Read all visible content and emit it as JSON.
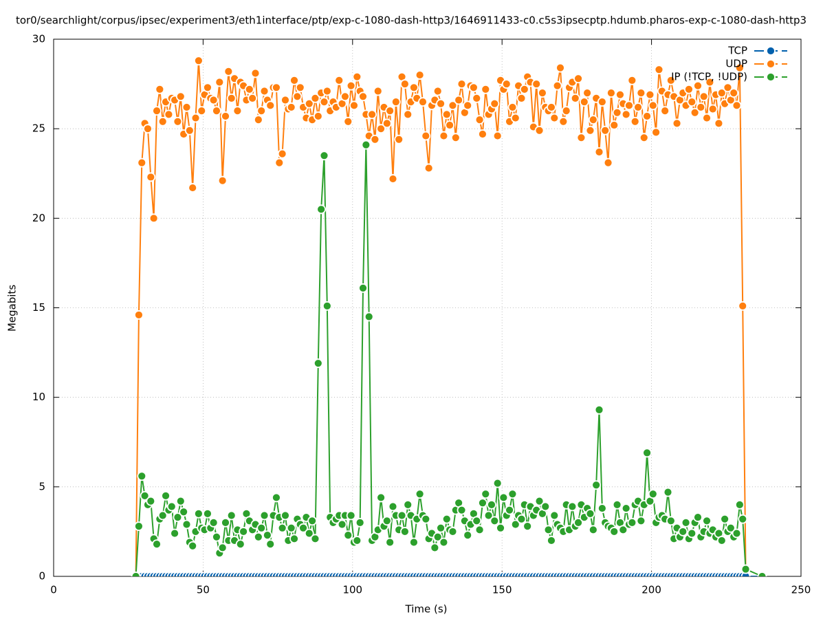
{
  "chart_data": {
    "type": "line",
    "title": "tor0/searchlight/corpus/ipsec/experiment3/eth1interface/ptp/exp-c-1080-dash-http3/1646911433-c0.c5s3ipsecptp.hdumb.pharos-exp-c-1080-dash-http3",
    "x_label": "Time (s)",
    "y_label": "Megabits",
    "xlim": [
      0,
      250
    ],
    "xticks": [
      0,
      50,
      100,
      150,
      200,
      250
    ],
    "ylim": [
      0,
      30
    ],
    "yticks": [
      0,
      5,
      10,
      15,
      20,
      25,
      30
    ],
    "grid": true,
    "legend": "top-right",
    "x": [
      27.5,
      28.5,
      29.5,
      30.5,
      31.5,
      32.5,
      33.5,
      34.5,
      35.5,
      36.5,
      37.5,
      38.5,
      39.5,
      40.5,
      41.5,
      42.5,
      43.5,
      44.5,
      45.5,
      46.5,
      47.5,
      48.5,
      49.5,
      50.5,
      51.5,
      52.5,
      53.5,
      54.5,
      55.5,
      56.5,
      57.5,
      58.5,
      59.5,
      60.5,
      61.5,
      62.5,
      63.5,
      64.5,
      65.5,
      66.5,
      67.5,
      68.5,
      69.5,
      70.5,
      71.5,
      72.5,
      73.5,
      74.5,
      75.5,
      76.5,
      77.5,
      78.5,
      79.5,
      80.5,
      81.5,
      82.5,
      83.5,
      84.5,
      85.5,
      86.5,
      87.5,
      88.5,
      89.5,
      90.5,
      91.5,
      92.5,
      93.5,
      94.5,
      95.5,
      96.5,
      97.5,
      98.5,
      99.5,
      100.5,
      101.5,
      102.5,
      103.5,
      104.5,
      105.5,
      106.5,
      107.5,
      108.5,
      109.5,
      110.5,
      111.5,
      112.5,
      113.5,
      114.5,
      115.5,
      116.5,
      117.5,
      118.5,
      119.5,
      120.5,
      121.5,
      122.5,
      123.5,
      124.5,
      125.5,
      126.5,
      127.5,
      128.5,
      129.5,
      130.5,
      131.5,
      132.5,
      133.5,
      134.5,
      135.5,
      136.5,
      137.5,
      138.5,
      139.5,
      140.5,
      141.5,
      142.5,
      143.5,
      144.5,
      145.5,
      146.5,
      147.5,
      148.5,
      149.5,
      150.5,
      151.5,
      152.5,
      153.5,
      154.5,
      155.5,
      156.5,
      157.5,
      158.5,
      159.5,
      160.5,
      161.5,
      162.5,
      163.5,
      164.5,
      165.5,
      166.5,
      167.5,
      168.5,
      169.5,
      170.5,
      171.5,
      172.5,
      173.5,
      174.5,
      175.5,
      176.5,
      177.5,
      178.5,
      179.5,
      180.5,
      181.5,
      182.5,
      183.5,
      184.5,
      185.5,
      186.5,
      187.5,
      188.5,
      189.5,
      190.5,
      191.5,
      192.5,
      193.5,
      194.5,
      195.5,
      196.5,
      197.5,
      198.5,
      199.5,
      200.5,
      201.5,
      202.5,
      203.5,
      204.5,
      205.5,
      206.5,
      207.5,
      208.5,
      209.5,
      210.5,
      211.5,
      212.5,
      213.5,
      214.5,
      215.5,
      216.5,
      217.5,
      218.5,
      219.5,
      220.5,
      221.5,
      222.5,
      223.5,
      224.5,
      225.5,
      226.5,
      227.5,
      228.5,
      229.5,
      230.5,
      231.5,
      237
    ],
    "series": [
      {
        "name": "TCP",
        "color": "#0060ad",
        "values": [
          0,
          0,
          0,
          0,
          0,
          0,
          0,
          0,
          0,
          0,
          0,
          0,
          0,
          0,
          0,
          0,
          0,
          0,
          0,
          0,
          0,
          0,
          0,
          0,
          0,
          0,
          0,
          0,
          0,
          0,
          0,
          0,
          0,
          0,
          0,
          0,
          0,
          0,
          0,
          0,
          0,
          0,
          0,
          0,
          0,
          0,
          0,
          0,
          0,
          0,
          0,
          0,
          0,
          0,
          0,
          0,
          0,
          0,
          0,
          0,
          0,
          0,
          0,
          0,
          0,
          0,
          0,
          0,
          0,
          0,
          0,
          0,
          0,
          0,
          0,
          0,
          0,
          0,
          0,
          0,
          0,
          0,
          0,
          0,
          0,
          0,
          0,
          0,
          0,
          0,
          0,
          0,
          0,
          0,
          0,
          0,
          0,
          0,
          0,
          0,
          0,
          0,
          0,
          0,
          0,
          0,
          0,
          0,
          0,
          0,
          0,
          0,
          0,
          0,
          0,
          0,
          0,
          0,
          0,
          0,
          0,
          0,
          0,
          0,
          0,
          0,
          0,
          0,
          0,
          0,
          0,
          0,
          0,
          0,
          0,
          0,
          0,
          0,
          0,
          0,
          0,
          0,
          0,
          0,
          0,
          0,
          0,
          0,
          0,
          0,
          0,
          0,
          0,
          0,
          0,
          0,
          0,
          0,
          0,
          0,
          0,
          0,
          0,
          0,
          0,
          0,
          0,
          0,
          0,
          0,
          0,
          0,
          0,
          0,
          0,
          0,
          0,
          0,
          0,
          0,
          0,
          0,
          0,
          0,
          0,
          0,
          0,
          0,
          0,
          0,
          0,
          0,
          0,
          0,
          0,
          0,
          0,
          0,
          0,
          0,
          0,
          0,
          0,
          0,
          0,
          0
        ]
      },
      {
        "name": "UDP",
        "color": "#ff7f0e",
        "values": [
          0,
          14.6,
          23.1,
          25.3,
          25.0,
          22.3,
          20.0,
          26.0,
          27.2,
          25.4,
          26.5,
          25.8,
          26.7,
          26.6,
          25.4,
          26.8,
          24.7,
          26.2,
          24.9,
          21.7,
          25.6,
          28.8,
          26.0,
          26.9,
          27.3,
          26.7,
          26.6,
          26.0,
          27.6,
          22.1,
          25.7,
          28.2,
          26.7,
          27.8,
          26.0,
          27.6,
          27.4,
          26.6,
          27.2,
          26.7,
          28.1,
          25.5,
          26.0,
          27.1,
          26.6,
          26.3,
          27.3,
          27.3,
          23.1,
          23.6,
          26.6,
          26.1,
          26.2,
          27.7,
          26.8,
          27.3,
          26.2,
          25.6,
          26.4,
          25.5,
          26.7,
          25.7,
          27.0,
          26.5,
          27.1,
          26.0,
          26.5,
          26.2,
          27.7,
          26.4,
          26.8,
          25.4,
          27.4,
          26.3,
          27.9,
          27.1,
          26.8,
          25.8,
          24.6,
          25.8,
          24.4,
          27.1,
          25.0,
          26.2,
          25.3,
          26.0,
          22.2,
          26.5,
          24.4,
          27.9,
          27.5,
          25.8,
          26.5,
          27.3,
          26.7,
          28.0,
          26.5,
          24.6,
          22.8,
          26.3,
          26.6,
          27.1,
          26.4,
          24.6,
          25.8,
          25.2,
          26.3,
          24.5,
          26.6,
          27.5,
          25.9,
          26.3,
          27.4,
          27.3,
          26.7,
          25.5,
          24.7,
          27.2,
          25.8,
          26.1,
          26.4,
          24.6,
          27.7,
          27.2,
          27.5,
          25.4,
          26.2,
          25.6,
          27.4,
          26.7,
          27.2,
          27.9,
          27.6,
          25.1,
          27.5,
          24.9,
          27.0,
          26.2,
          26.0,
          26.2,
          25.6,
          27.4,
          28.4,
          25.4,
          26.0,
          27.3,
          27.6,
          26.7,
          27.8,
          24.5,
          26.5,
          27.0,
          24.9,
          25.5,
          26.7,
          23.7,
          26.5,
          24.9,
          23.1,
          27.0,
          25.2,
          25.9,
          26.9,
          26.4,
          25.8,
          26.3,
          27.7,
          25.4,
          26.2,
          27.0,
          24.5,
          25.7,
          26.9,
          26.3,
          24.8,
          28.3,
          27.1,
          26.0,
          26.9,
          27.7,
          26.8,
          25.3,
          26.6,
          27.0,
          26.3,
          27.2,
          26.5,
          25.9,
          27.4,
          26.2,
          26.8,
          25.6,
          27.6,
          26.1,
          26.9,
          25.3,
          27.0,
          26.4,
          27.3,
          26.6,
          27.0,
          26.3,
          28.4,
          15.1,
          0.4,
          null
        ]
      },
      {
        "name": "IP (!TCP, !UDP)",
        "color": "#2ca02c",
        "values": [
          0,
          2.8,
          5.6,
          4.5,
          4.0,
          4.2,
          2.1,
          1.8,
          3.2,
          3.4,
          4.5,
          3.7,
          3.9,
          2.4,
          3.3,
          4.2,
          3.6,
          2.9,
          1.9,
          1.7,
          2.5,
          3.5,
          2.7,
          2.6,
          3.5,
          2.7,
          3.0,
          2.2,
          1.3,
          1.6,
          3.0,
          2.0,
          3.4,
          2.0,
          2.6,
          1.8,
          2.5,
          3.5,
          3.1,
          2.6,
          2.9,
          2.2,
          2.7,
          3.4,
          2.3,
          1.8,
          3.4,
          4.4,
          3.3,
          2.7,
          3.4,
          2.0,
          2.7,
          2.1,
          3.2,
          2.9,
          2.7,
          3.3,
          2.4,
          3.1,
          2.1,
          11.9,
          20.5,
          23.5,
          15.1,
          3.3,
          3.0,
          3.2,
          3.4,
          2.9,
          3.4,
          2.3,
          3.4,
          1.9,
          2.0,
          3.0,
          16.1,
          24.1,
          14.5,
          2.0,
          2.2,
          2.6,
          4.4,
          2.8,
          3.1,
          1.9,
          3.9,
          3.4,
          2.6,
          3.4,
          2.5,
          4.0,
          3.4,
          1.9,
          3.2,
          4.6,
          3.4,
          3.2,
          2.1,
          2.4,
          1.6,
          2.2,
          2.7,
          1.9,
          3.2,
          2.6,
          2.5,
          3.7,
          4.1,
          3.7,
          3.1,
          2.3,
          2.9,
          3.5,
          3.1,
          2.6,
          4.1,
          4.6,
          3.4,
          4.0,
          3.1,
          5.2,
          2.7,
          4.4,
          3.4,
          3.7,
          4.6,
          2.9,
          3.4,
          3.2,
          4.0,
          2.8,
          3.9,
          3.4,
          3.7,
          4.2,
          3.5,
          3.9,
          2.6,
          2.0,
          3.4,
          2.9,
          2.7,
          2.5,
          4.0,
          2.6,
          3.9,
          2.8,
          3.0,
          4.0,
          3.3,
          3.8,
          3.5,
          2.6,
          5.1,
          9.3,
          3.8,
          3.0,
          2.8,
          2.7,
          2.5,
          4.0,
          3.0,
          2.6,
          3.8,
          2.9,
          3.0,
          4.0,
          4.2,
          3.1,
          4.0,
          6.9,
          4.2,
          4.6,
          3.0,
          3.3,
          3.4,
          3.2,
          4.7,
          3.1,
          2.1,
          2.7,
          2.2,
          2.5,
          3.0,
          2.1,
          2.4,
          3.0,
          3.3,
          2.2,
          2.5,
          3.1,
          2.4,
          2.6,
          2.2,
          2.4,
          2.0,
          3.2,
          2.5,
          2.7,
          2.2,
          2.4,
          4.0,
          3.2,
          0.4,
          0
        ]
      }
    ]
  }
}
